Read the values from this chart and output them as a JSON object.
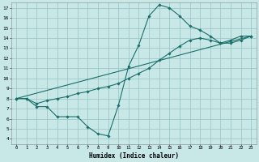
{
  "xlabel": "Humidex (Indice chaleur)",
  "bg_color": "#c8e8e8",
  "grid_color": "#a0c8c8",
  "line_color": "#1a6e6a",
  "xlim": [
    -0.5,
    23.5
  ],
  "ylim": [
    3.5,
    17.5
  ],
  "xticks": [
    0,
    1,
    2,
    3,
    4,
    5,
    6,
    7,
    8,
    9,
    10,
    11,
    12,
    13,
    14,
    15,
    16,
    17,
    18,
    19,
    20,
    21,
    22,
    23
  ],
  "yticks": [
    4,
    5,
    6,
    7,
    8,
    9,
    10,
    11,
    12,
    13,
    14,
    15,
    16,
    17
  ],
  "curve1_x": [
    0,
    1,
    2,
    3,
    4,
    5,
    6,
    7,
    8,
    9,
    10,
    11,
    12,
    13,
    14,
    15,
    16,
    17,
    18,
    19,
    20,
    21,
    22,
    23
  ],
  "curve1_y": [
    8.0,
    8.0,
    7.2,
    7.2,
    6.2,
    6.2,
    6.2,
    5.2,
    4.5,
    4.3,
    7.3,
    11.2,
    13.3,
    16.2,
    17.3,
    17.0,
    16.2,
    15.2,
    14.8,
    14.2,
    13.5,
    13.8,
    14.2,
    14.2
  ],
  "curve2_x": [
    0,
    1,
    2,
    3,
    4,
    5,
    6,
    7,
    8,
    9,
    10,
    11,
    12,
    13,
    14,
    15,
    16,
    17,
    18,
    19,
    20,
    21,
    22,
    23
  ],
  "curve2_y": [
    8.0,
    8.0,
    7.5,
    7.8,
    8.0,
    8.2,
    8.5,
    8.7,
    9.0,
    9.2,
    9.5,
    10.0,
    10.5,
    11.0,
    11.8,
    12.5,
    13.2,
    13.8,
    14.0,
    13.8,
    13.5,
    13.5,
    13.8,
    14.2
  ],
  "line3_x": [
    0,
    23
  ],
  "line3_y": [
    8.0,
    14.2
  ]
}
